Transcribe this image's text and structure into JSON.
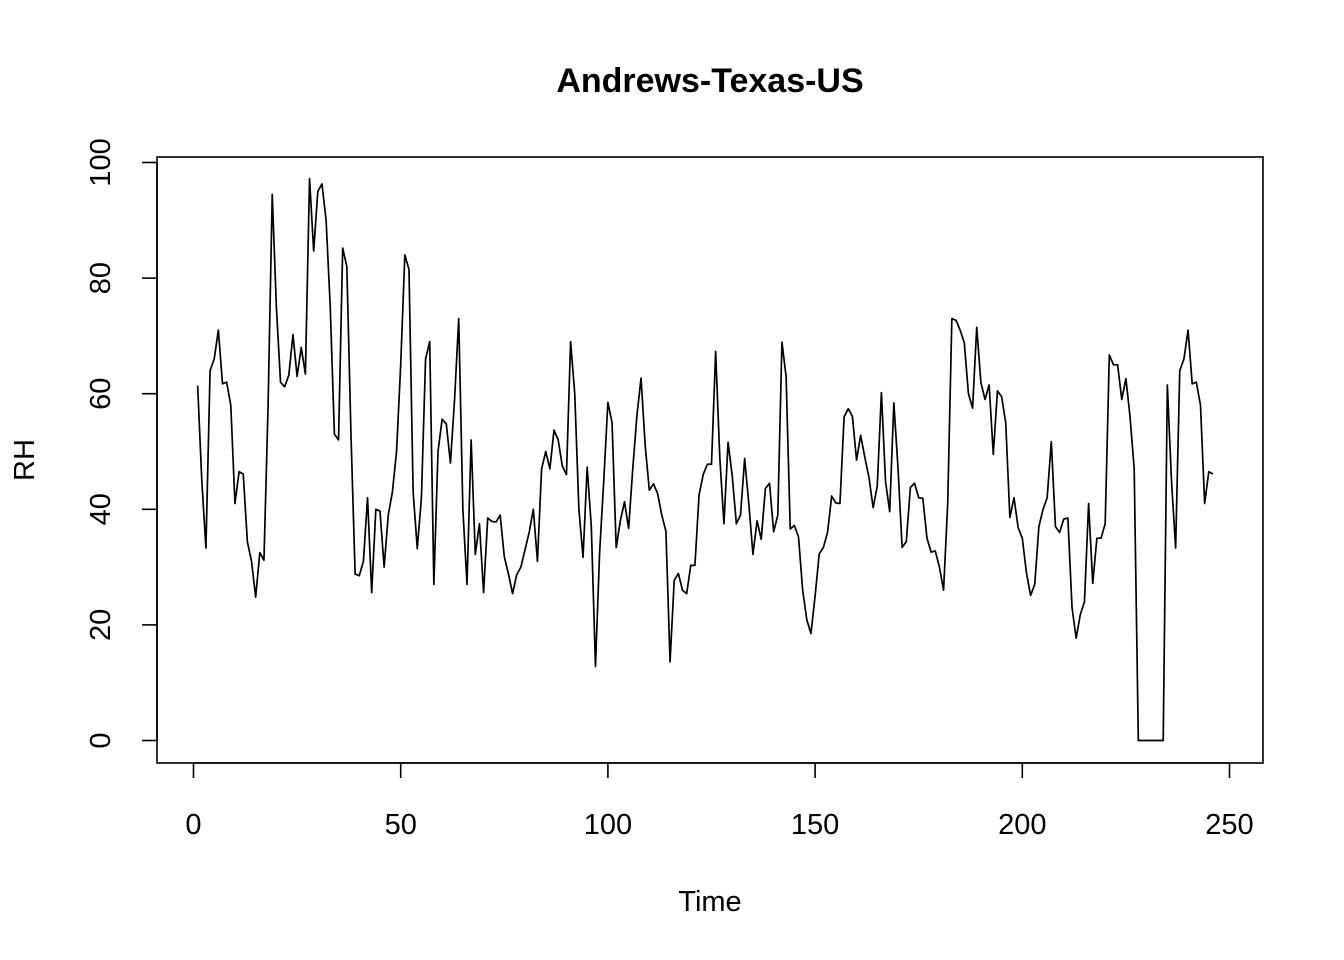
{
  "chart_data": {
    "type": "line",
    "title": "Andrews-Texas-US",
    "xlabel": "Time",
    "ylabel": "RH",
    "xlim": [
      0,
      250
    ],
    "ylim": [
      0,
      100
    ],
    "xticks": [
      "0",
      "50",
      "100",
      "150",
      "200",
      "250"
    ],
    "yticks": [
      "0",
      "20",
      "40",
      "60",
      "80",
      "100"
    ],
    "grid": false,
    "legend": "none",
    "line_color": "#000000",
    "series": [
      {
        "x_start": 1,
        "values": [
          61.4,
          45,
          33.3,
          64,
          66,
          71,
          61.7,
          62,
          58,
          41,
          46.5,
          46.1,
          34.4,
          31,
          24.8,
          32.5,
          31.2,
          58,
          94.5,
          75,
          62,
          61.2,
          63.2,
          70.2,
          63,
          68,
          63.4,
          97.2,
          84.7,
          95,
          96.3,
          90,
          75,
          53,
          52,
          85.2,
          82,
          53,
          28.8,
          28.5,
          31,
          42,
          25.6,
          40,
          39.7,
          30,
          39,
          43,
          50,
          65,
          84,
          81.5,
          43,
          33.2,
          42,
          66,
          69,
          27,
          50,
          55.6,
          54.8,
          48,
          59,
          73,
          40,
          27,
          52,
          32.2,
          37.5,
          25.6,
          38.5,
          37.9,
          37.8,
          39,
          31.8,
          28.8,
          25.4,
          28.7,
          30,
          33,
          36,
          40,
          31,
          47,
          50,
          47,
          53.7,
          52,
          47.5,
          46,
          69,
          60,
          40,
          31.7,
          47.3,
          37,
          12.8,
          32.5,
          45,
          58.5,
          55,
          33.4,
          38,
          41.3,
          36.7,
          47,
          56.2,
          62.7,
          51,
          43.3,
          44.4,
          42.7,
          39,
          36.2,
          13.6,
          27.7,
          28.9,
          26,
          25.4,
          30.3,
          30.3,
          42.5,
          46,
          47.8,
          47.8,
          67.3,
          49,
          37.5,
          51.6,
          45.8,
          37.5,
          39,
          48.8,
          41,
          32.2,
          38,
          34.8,
          43.6,
          44.5,
          36.1,
          39,
          68.9,
          63,
          36.6,
          37.2,
          35.2,
          26,
          20.9,
          18.5,
          25,
          32.3,
          33.4,
          36,
          42.3,
          41.1,
          41,
          56,
          57.4,
          56.1,
          48.5,
          52.8,
          49,
          45.5,
          40.3,
          44,
          60.2,
          44.8,
          39.6,
          58.4,
          47.2,
          33.4,
          34.4,
          43.8,
          44.5,
          42,
          41.9,
          35,
          32.6,
          32.8,
          30,
          26,
          41,
          73,
          72.7,
          71,
          68.8,
          60,
          57.5,
          71.5,
          62,
          59,
          61.5,
          49.5,
          60.5,
          59.5,
          55,
          38.6,
          42,
          36.8,
          35,
          29,
          25.1,
          27,
          37,
          40,
          42,
          51.7,
          37,
          36,
          38.3,
          38.5,
          23,
          17.7,
          21.8,
          24,
          41,
          27.2,
          35,
          35,
          37.5,
          66.7,
          65,
          65,
          59,
          62.6,
          56,
          47,
          0,
          0,
          0,
          0,
          0,
          0,
          0,
          61.5,
          45,
          33.3,
          64,
          66,
          71,
          61.7,
          62,
          58,
          41,
          46.5,
          46.1
        ]
      }
    ]
  }
}
